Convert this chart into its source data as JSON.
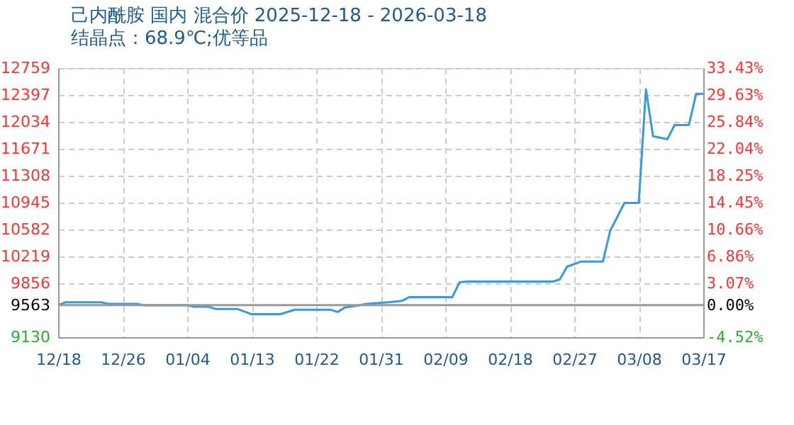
{
  "chart_data": {
    "type": "line",
    "title": "己内酰胺 国内 混合价 2025-12-18 - 2026-03-18",
    "subtitle": "结晶点：68.9℃;优等品",
    "x": [
      "2025-12-18",
      "2025-12-19",
      "2025-12-24",
      "2025-12-25",
      "2025-12-29",
      "2025-12-30",
      "2026-01-05",
      "2026-01-06",
      "2026-01-08",
      "2026-01-09",
      "2026-01-12",
      "2026-01-14",
      "2026-01-18",
      "2026-01-20",
      "2026-01-25",
      "2026-01-26",
      "2026-01-27",
      "2026-01-29",
      "2026-01-30",
      "2026-02-02",
      "2026-02-04",
      "2026-02-05",
      "2026-02-11",
      "2026-02-12",
      "2026-02-13",
      "2026-02-25",
      "2026-02-26",
      "2026-02-27",
      "2026-03-01",
      "2026-03-04",
      "2026-03-05",
      "2026-03-07",
      "2026-03-09",
      "2026-03-10",
      "2026-03-11",
      "2026-03-13",
      "2026-03-14",
      "2026-03-16",
      "2026-03-17",
      "2026-03-18"
    ],
    "series": [
      {
        "color": "#3a9ad9",
        "values": [
          9560,
          9600,
          9600,
          9580,
          9580,
          9560,
          9560,
          9540,
          9540,
          9510,
          9510,
          9440,
          9440,
          9500,
          9500,
          9470,
          9530,
          9560,
          9580,
          9600,
          9620,
          9670,
          9670,
          9870,
          9880,
          9880,
          9910,
          10080,
          10150,
          10150,
          10560,
          10940,
          10940,
          12470,
          11840,
          11800,
          11990,
          11990,
          12410,
          12410
        ]
      }
    ],
    "xlim": [
      "2025-12-18",
      "2026-03-18"
    ],
    "xticks": [
      {
        "value": "2025-12-18",
        "label": "12/18"
      },
      {
        "value": "2025-12-27",
        "label": "12/26"
      },
      {
        "value": "2026-01-05",
        "label": "01/04"
      },
      {
        "value": "2026-01-14",
        "label": "01/13"
      },
      {
        "value": "2026-01-23",
        "label": "01/22"
      },
      {
        "value": "2026-02-01",
        "label": "01/31"
      },
      {
        "value": "2026-02-10",
        "label": "02/09"
      },
      {
        "value": "2026-02-19",
        "label": "02/18"
      },
      {
        "value": "2026-02-28",
        "label": "02/27"
      },
      {
        "value": "2026-03-09",
        "label": "03/08"
      },
      {
        "value": "2026-03-18",
        "label": "03/17"
      }
    ],
    "ylim": [
      9130,
      12759
    ],
    "yticks": [
      9130,
      9563,
      9856,
      10219,
      10582,
      10945,
      11308,
      11671,
      12034,
      12397,
      12759
    ],
    "y2lim": [
      -4.52,
      33.43
    ],
    "y2ticks": [
      {
        "value": -4.52,
        "label": "-4.52%"
      },
      {
        "value": 0,
        "label": "0.00%"
      },
      {
        "value": 3.07,
        "label": "3.07%"
      },
      {
        "value": 6.86,
        "label": "6.86%"
      },
      {
        "value": 10.66,
        "label": "10.66%"
      },
      {
        "value": 14.45,
        "label": "14.45%"
      },
      {
        "value": 18.25,
        "label": "18.25%"
      },
      {
        "value": 22.04,
        "label": "22.04%"
      },
      {
        "value": 25.84,
        "label": "25.84%"
      },
      {
        "value": 29.63,
        "label": "29.63%"
      },
      {
        "value": 33.43,
        "label": "33.43%"
      }
    ],
    "ref_lines": [
      {
        "axis": "y",
        "value": 9563,
        "color": "#999999",
        "line_style": "solid"
      }
    ],
    "grid": true,
    "marker": "none",
    "line_style": "solid"
  }
}
